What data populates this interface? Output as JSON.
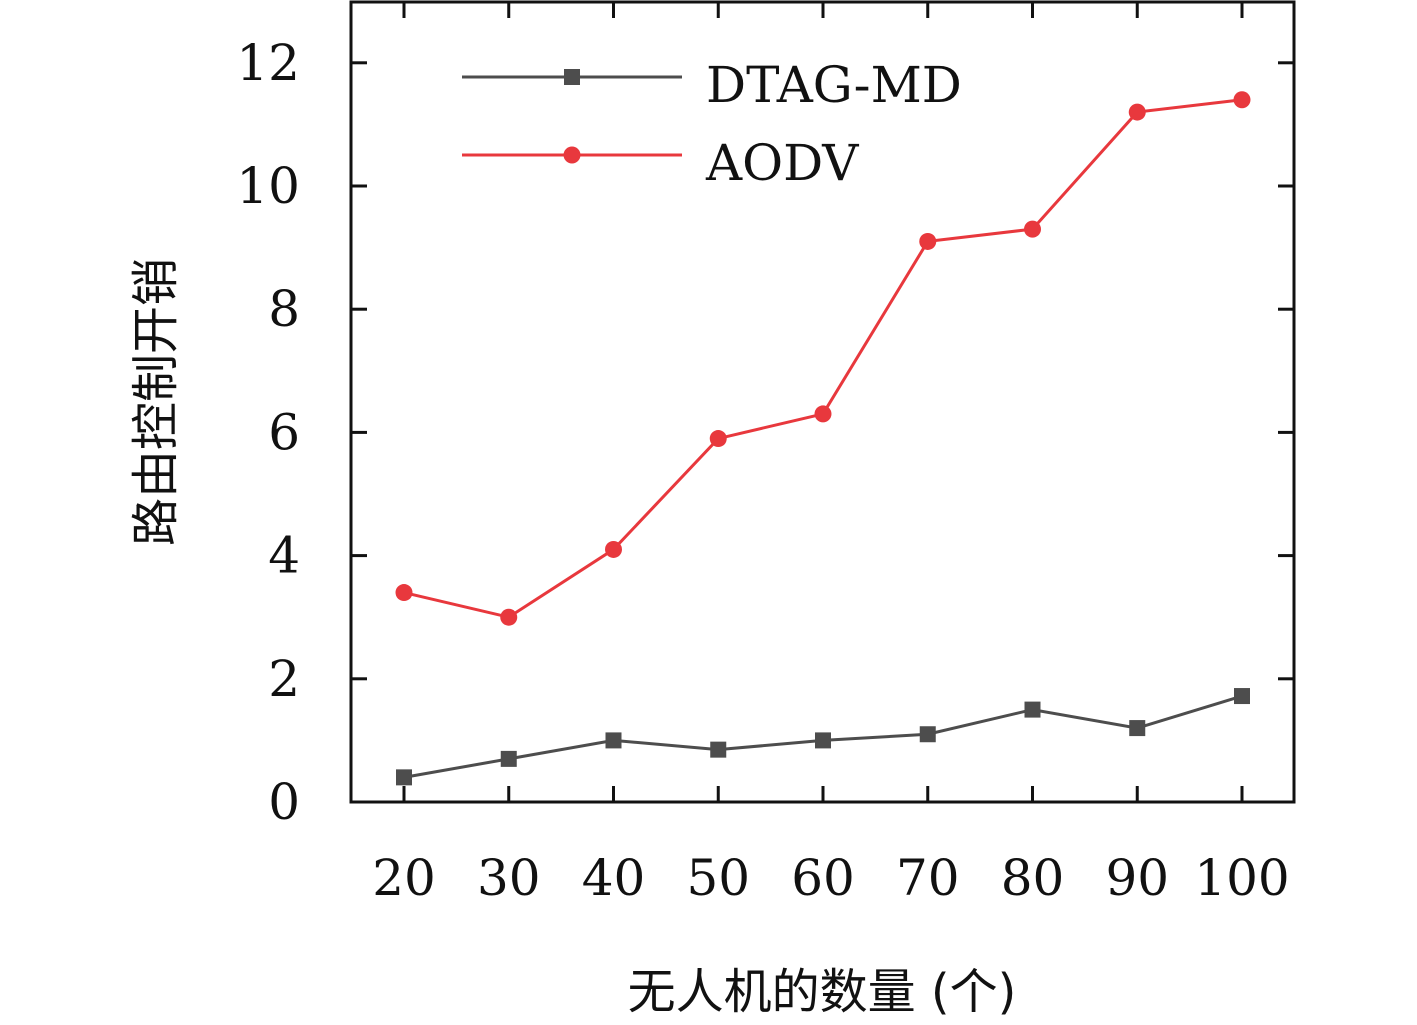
{
  "chart_data": {
    "type": "line",
    "title": "",
    "xlabel": "无人机的数量 (个)",
    "ylabel": "路由控制开销",
    "categories": [
      "20",
      "30",
      "40",
      "50",
      "60",
      "70",
      "80",
      "90",
      "100"
    ],
    "ylim": [
      0,
      13
    ],
    "yticks": [
      0,
      2,
      4,
      6,
      8,
      10,
      12
    ],
    "ytick_labels": [
      "0",
      "2",
      "4",
      "6",
      "8",
      "10",
      "12"
    ],
    "grid": false,
    "legend_position": "top-left",
    "series": [
      {
        "name": "DTAG-MD",
        "marker": "square",
        "color": "#4d4d4d",
        "values": [
          0.4,
          0.7,
          1.0,
          0.85,
          1.0,
          1.1,
          1.5,
          1.2,
          1.72
        ]
      },
      {
        "name": "AODV",
        "marker": "circle",
        "color": "#e8383d",
        "values": [
          3.4,
          3.0,
          4.1,
          5.9,
          6.3,
          9.1,
          9.3,
          11.2,
          11.4
        ]
      }
    ]
  }
}
